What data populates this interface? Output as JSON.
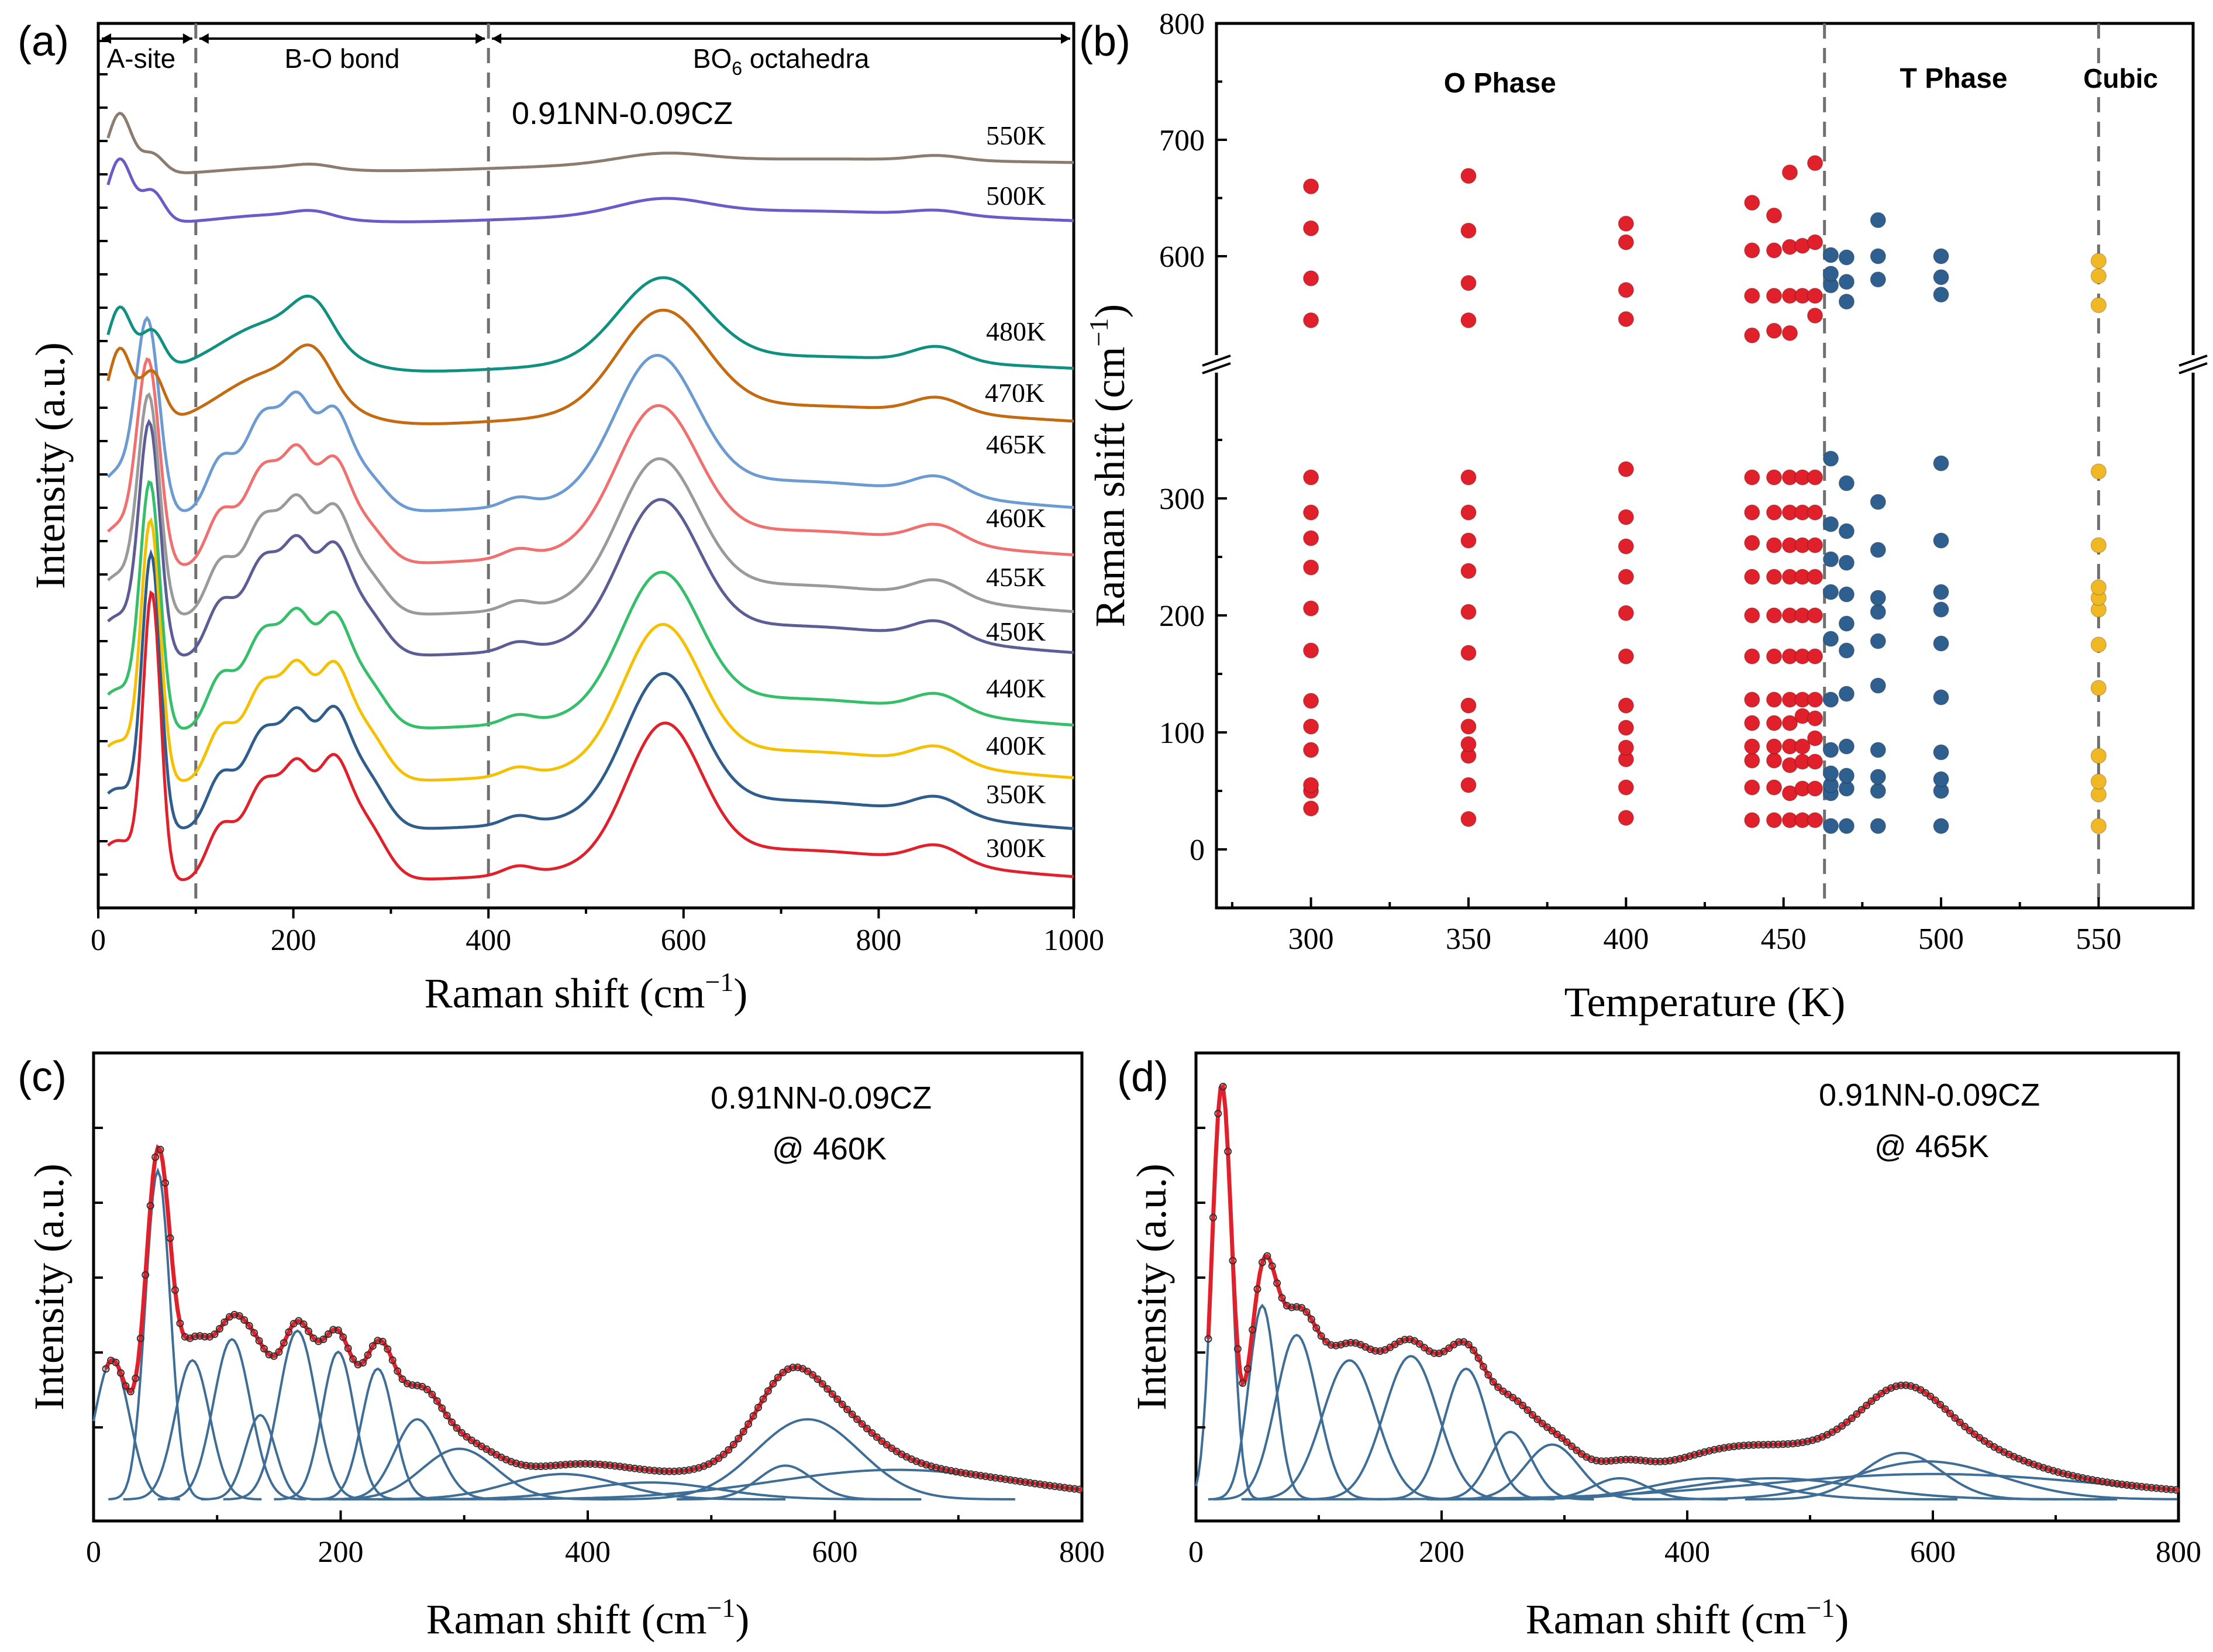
{
  "panel_labels": [
    "(a)",
    "(b)",
    "(c)",
    "(d)"
  ],
  "colors": {
    "red": "#e0202a",
    "blue": "#2e5f8e",
    "yellow": "#f0b824",
    "fit_blue": "#3e6d96"
  },
  "chart_data": [
    {
      "id": "a",
      "type": "line",
      "sample": "0.91NN-0.09CZ",
      "xlabel": "Raman shift (cm",
      "xlabel_sup": "−1",
      "xlabel_close": ")",
      "ylabel": "Intensity (a.u.)",
      "xlim": [
        0,
        1000
      ],
      "xticks": [
        "0",
        "200",
        "400",
        "600",
        "800",
        "1000"
      ],
      "regions": [
        {
          "label": "A-site",
          "from": 0,
          "to": 100
        },
        {
          "label": "B-O bond",
          "from": 100,
          "to": 400
        },
        {
          "label": "BO",
          "sub": "6",
          "rest": " octahedra",
          "from": 400,
          "to": 1000
        }
      ],
      "dividers": [
        100,
        400
      ],
      "series": [
        {
          "name": "300K",
          "color": "#e0202a"
        },
        {
          "name": "350K",
          "color": "#2f5d8c"
        },
        {
          "name": "400K",
          "color": "#f5c000"
        },
        {
          "name": "440K",
          "color": "#36bf6a"
        },
        {
          "name": "450K",
          "color": "#5d5d96"
        },
        {
          "name": "455K",
          "color": "#9a9a9a"
        },
        {
          "name": "460K",
          "color": "#f07070"
        },
        {
          "name": "465K",
          "color": "#6c9bd2"
        },
        {
          "name": "470K",
          "color": "#c46a10"
        },
        {
          "name": "480K",
          "color": "#109080"
        },
        {
          "name": "500K",
          "color": "#6a5cc8"
        },
        {
          "name": "550K",
          "color": "#8c7c70"
        }
      ]
    },
    {
      "id": "b",
      "type": "scatter",
      "xlabel": "Temperature (K)",
      "ylabel": "Raman shift (cm",
      "ylabel_sup": "−1",
      "ylabel_close": ")",
      "xlim": [
        270,
        580
      ],
      "xticks": [
        300,
        350,
        400,
        450,
        500,
        550
      ],
      "y_lower_ticks": [
        0,
        100,
        200,
        300
      ],
      "y_upper_ticks": [
        600,
        700,
        800
      ],
      "phase_labels": [
        {
          "text": "O Phase",
          "color": "#e0202a"
        },
        {
          "text": "T Phase",
          "color": "#2e5f8e"
        },
        {
          "text": "Cubic",
          "color": "#f0b824"
        }
      ],
      "boundaries": [
        463,
        550
      ],
      "series": [
        {
          "name": "O Phase",
          "color": "#e0202a",
          "points": [
            [
              300,
              35
            ],
            [
              300,
              50
            ],
            [
              300,
              55
            ],
            [
              300,
              85
            ],
            [
              300,
              105
            ],
            [
              300,
              127
            ],
            [
              300,
              170
            ],
            [
              300,
              206
            ],
            [
              300,
              241
            ],
            [
              300,
              266
            ],
            [
              300,
              288
            ],
            [
              300,
              318
            ],
            [
              300,
              545
            ],
            [
              300,
              581
            ],
            [
              300,
              624
            ],
            [
              300,
              660
            ],
            [
              350,
              26
            ],
            [
              350,
              55
            ],
            [
              350,
              80
            ],
            [
              350,
              90
            ],
            [
              350,
              105
            ],
            [
              350,
              123
            ],
            [
              350,
              168
            ],
            [
              350,
              203
            ],
            [
              350,
              238
            ],
            [
              350,
              264
            ],
            [
              350,
              288
            ],
            [
              350,
              318
            ],
            [
              350,
              545
            ],
            [
              350,
              577
            ],
            [
              350,
              622
            ],
            [
              350,
              669
            ],
            [
              400,
              27
            ],
            [
              400,
              53
            ],
            [
              400,
              77
            ],
            [
              400,
              87
            ],
            [
              400,
              104
            ],
            [
              400,
              123
            ],
            [
              400,
              165
            ],
            [
              400,
              202
            ],
            [
              400,
              233
            ],
            [
              400,
              259
            ],
            [
              400,
              284
            ],
            [
              400,
              325
            ],
            [
              400,
              546
            ],
            [
              400,
              571
            ],
            [
              400,
              612
            ],
            [
              400,
              628
            ],
            [
              440,
              25
            ],
            [
              440,
              53
            ],
            [
              440,
              76
            ],
            [
              440,
              88
            ],
            [
              440,
              108
            ],
            [
              440,
              128
            ],
            [
              440,
              165
            ],
            [
              440,
              200
            ],
            [
              440,
              233
            ],
            [
              440,
              262
            ],
            [
              440,
              288
            ],
            [
              440,
              318
            ],
            [
              440,
              532
            ],
            [
              440,
              566
            ],
            [
              440,
              605
            ],
            [
              440,
              646
            ],
            [
              447,
              25
            ],
            [
              447,
              53
            ],
            [
              447,
              76
            ],
            [
              447,
              88
            ],
            [
              447,
              108
            ],
            [
              447,
              128
            ],
            [
              447,
              165
            ],
            [
              447,
              200
            ],
            [
              447,
              233
            ],
            [
              447,
              260
            ],
            [
              447,
              288
            ],
            [
              447,
              318
            ],
            [
              447,
              536
            ],
            [
              447,
              566
            ],
            [
              447,
              605
            ],
            [
              447,
              635
            ],
            [
              452,
              25
            ],
            [
              452,
              48
            ],
            [
              452,
              72
            ],
            [
              452,
              88
            ],
            [
              452,
              108
            ],
            [
              452,
              128
            ],
            [
              452,
              165
            ],
            [
              452,
              200
            ],
            [
              452,
              233
            ],
            [
              452,
              260
            ],
            [
              452,
              288
            ],
            [
              452,
              318
            ],
            [
              452,
              534
            ],
            [
              452,
              566
            ],
            [
              452,
              608
            ],
            [
              452,
              672
            ],
            [
              456,
              25
            ],
            [
              456,
              52
            ],
            [
              456,
              75
            ],
            [
              456,
              88
            ],
            [
              456,
              114
            ],
            [
              456,
              128
            ],
            [
              456,
              165
            ],
            [
              456,
              200
            ],
            [
              456,
              233
            ],
            [
              456,
              260
            ],
            [
              456,
              288
            ],
            [
              456,
              318
            ],
            [
              456,
              566
            ],
            [
              456,
              609
            ],
            [
              460,
              25
            ],
            [
              460,
              52
            ],
            [
              460,
              75
            ],
            [
              460,
              95
            ],
            [
              460,
              112
            ],
            [
              460,
              128
            ],
            [
              460,
              165
            ],
            [
              460,
              200
            ],
            [
              460,
              233
            ],
            [
              460,
              260
            ],
            [
              460,
              288
            ],
            [
              460,
              318
            ],
            [
              460,
              549
            ],
            [
              460,
              566
            ],
            [
              460,
              612
            ],
            [
              460,
              680
            ]
          ]
        },
        {
          "name": "T Phase",
          "color": "#2e5f8e",
          "points": [
            [
              465,
              20
            ],
            [
              465,
              48
            ],
            [
              465,
              55
            ],
            [
              465,
              65
            ],
            [
              465,
              85
            ],
            [
              465,
              128
            ],
            [
              465,
              180
            ],
            [
              465,
              220
            ],
            [
              465,
              248
            ],
            [
              465,
              278
            ],
            [
              465,
              334
            ],
            [
              465,
              575
            ],
            [
              465,
              585
            ],
            [
              465,
              601
            ],
            [
              470,
              20
            ],
            [
              470,
              52
            ],
            [
              470,
              63
            ],
            [
              470,
              88
            ],
            [
              470,
              133
            ],
            [
              470,
              170
            ],
            [
              470,
              193
            ],
            [
              470,
              218
            ],
            [
              470,
              245
            ],
            [
              470,
              272
            ],
            [
              470,
              313
            ],
            [
              470,
              561
            ],
            [
              470,
              578
            ],
            [
              470,
              599
            ],
            [
              480,
              20
            ],
            [
              480,
              50
            ],
            [
              480,
              62
            ],
            [
              480,
              85
            ],
            [
              480,
              140
            ],
            [
              480,
              178
            ],
            [
              480,
              203
            ],
            [
              480,
              215
            ],
            [
              480,
              256
            ],
            [
              480,
              297
            ],
            [
              480,
              580
            ],
            [
              480,
              600
            ],
            [
              480,
              631
            ],
            [
              500,
              20
            ],
            [
              500,
              50
            ],
            [
              500,
              60
            ],
            [
              500,
              83
            ],
            [
              500,
              130
            ],
            [
              500,
              176
            ],
            [
              500,
              205
            ],
            [
              500,
              220
            ],
            [
              500,
              264
            ],
            [
              500,
              330
            ],
            [
              500,
              567
            ],
            [
              500,
              582
            ],
            [
              500,
              600
            ]
          ]
        },
        {
          "name": "Cubic",
          "color": "#f0b824",
          "points": [
            [
              550,
              20
            ],
            [
              550,
              47
            ],
            [
              550,
              58
            ],
            [
              550,
              80
            ],
            [
              550,
              138
            ],
            [
              550,
              175
            ],
            [
              550,
              205
            ],
            [
              550,
              215
            ],
            [
              550,
              224
            ],
            [
              550,
              260
            ],
            [
              550,
              323
            ],
            [
              550,
              558
            ],
            [
              550,
              583
            ],
            [
              550,
              596
            ]
          ]
        }
      ]
    },
    {
      "id": "c",
      "type": "line",
      "sample": "0.91NN-0.09CZ",
      "condition": "@ 460K",
      "xlabel": "Raman shift (cm",
      "xlabel_sup": "−1",
      "xlabel_close": ")",
      "ylabel": "Intensity (a.u.)",
      "xlim": [
        0,
        800
      ],
      "xticks": [
        "0",
        "200",
        "400",
        "600",
        "800"
      ],
      "fit_peaks": [
        {
          "center": 15,
          "height": 0.33,
          "width": 14
        },
        {
          "center": 52,
          "height": 0.78,
          "width": 10
        },
        {
          "center": 80,
          "height": 0.33,
          "width": 14
        },
        {
          "center": 112,
          "height": 0.38,
          "width": 15
        },
        {
          "center": 135,
          "height": 0.2,
          "width": 12
        },
        {
          "center": 165,
          "height": 0.4,
          "width": 15
        },
        {
          "center": 198,
          "height": 0.35,
          "width": 13
        },
        {
          "center": 230,
          "height": 0.31,
          "width": 13
        },
        {
          "center": 262,
          "height": 0.19,
          "width": 18
        },
        {
          "center": 296,
          "height": 0.12,
          "width": 30
        },
        {
          "center": 380,
          "height": 0.06,
          "width": 45
        },
        {
          "center": 450,
          "height": 0.04,
          "width": 55
        },
        {
          "center": 560,
          "height": 0.08,
          "width": 22
        },
        {
          "center": 578,
          "height": 0.19,
          "width": 42
        },
        {
          "center": 650,
          "height": 0.07,
          "width": 100
        }
      ]
    },
    {
      "id": "d",
      "type": "line",
      "sample": "0.91NN-0.09CZ",
      "condition": "@ 465K",
      "xlabel": "Raman shift (cm",
      "xlabel_sup": "−1",
      "xlabel_close": ")",
      "ylabel": "Intensity (a.u.)",
      "xlim": [
        0,
        800
      ],
      "xticks": [
        "0",
        "200",
        "400",
        "600",
        "800"
      ],
      "fit_peaks": [
        {
          "center": 21,
          "height": 0.98,
          "width": 8
        },
        {
          "center": 54,
          "height": 0.46,
          "width": 11
        },
        {
          "center": 82,
          "height": 0.39,
          "width": 17
        },
        {
          "center": 125,
          "height": 0.33,
          "width": 22
        },
        {
          "center": 175,
          "height": 0.34,
          "width": 22
        },
        {
          "center": 220,
          "height": 0.31,
          "width": 18
        },
        {
          "center": 256,
          "height": 0.16,
          "width": 17
        },
        {
          "center": 290,
          "height": 0.13,
          "width": 22
        },
        {
          "center": 345,
          "height": 0.05,
          "width": 22
        },
        {
          "center": 420,
          "height": 0.05,
          "width": 50
        },
        {
          "center": 470,
          "height": 0.05,
          "width": 70
        },
        {
          "center": 575,
          "height": 0.11,
          "width": 32
        },
        {
          "center": 595,
          "height": 0.09,
          "width": 60
        },
        {
          "center": 600,
          "height": 0.06,
          "width": 140
        }
      ]
    }
  ]
}
